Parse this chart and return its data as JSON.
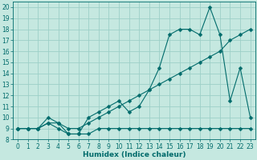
{
  "title": "",
  "xlabel": "Humidex (Indice chaleur)",
  "bg_color": "#c5e8e0",
  "line_color": "#006b6b",
  "grid_color": "#9dcfc7",
  "xlim": [
    -0.5,
    23.5
  ],
  "ylim": [
    8,
    20.5
  ],
  "xticks": [
    0,
    1,
    2,
    3,
    4,
    5,
    6,
    7,
    8,
    9,
    10,
    11,
    12,
    13,
    14,
    15,
    16,
    17,
    18,
    19,
    20,
    21,
    22,
    23
  ],
  "yticks": [
    8,
    9,
    10,
    11,
    12,
    13,
    14,
    15,
    16,
    17,
    18,
    19,
    20
  ],
  "line1_x": [
    0,
    1,
    2,
    3,
    4,
    5,
    6,
    7,
    8,
    9,
    10,
    11,
    12,
    13,
    14,
    15,
    16,
    17,
    18,
    19,
    20,
    21,
    22,
    23
  ],
  "line1_y": [
    9,
    9,
    9,
    9.5,
    9,
    8.5,
    8.5,
    8.5,
    9,
    9,
    9,
    9,
    9,
    9,
    9,
    9,
    9,
    9,
    9,
    9,
    9,
    9,
    9,
    9
  ],
  "line2_x": [
    0,
    1,
    2,
    3,
    4,
    5,
    6,
    7,
    8,
    9,
    10,
    11,
    12,
    13,
    14,
    15,
    16,
    17,
    18,
    19,
    20,
    21,
    22,
    23
  ],
  "line2_y": [
    9,
    9,
    9,
    10,
    9.5,
    8.5,
    8.5,
    10,
    10.5,
    11,
    11.5,
    10.5,
    11,
    12.5,
    14.5,
    17.5,
    18,
    18,
    17.5,
    20,
    17.5,
    11.5,
    14.5,
    10
  ],
  "line3_x": [
    0,
    1,
    2,
    3,
    4,
    5,
    6,
    7,
    8,
    9,
    10,
    11,
    12,
    13,
    14,
    15,
    16,
    17,
    18,
    19,
    20,
    21,
    22,
    23
  ],
  "line3_y": [
    9,
    9,
    9,
    9.5,
    9.5,
    9,
    9,
    9.5,
    10,
    10.5,
    11,
    11.5,
    12,
    12.5,
    13,
    13.5,
    14,
    14.5,
    15,
    15.5,
    16,
    17,
    17.5,
    18
  ],
  "marker_size": 2.5,
  "line_width": 0.8,
  "tick_fontsize": 5.5,
  "xlabel_fontsize": 6.5
}
